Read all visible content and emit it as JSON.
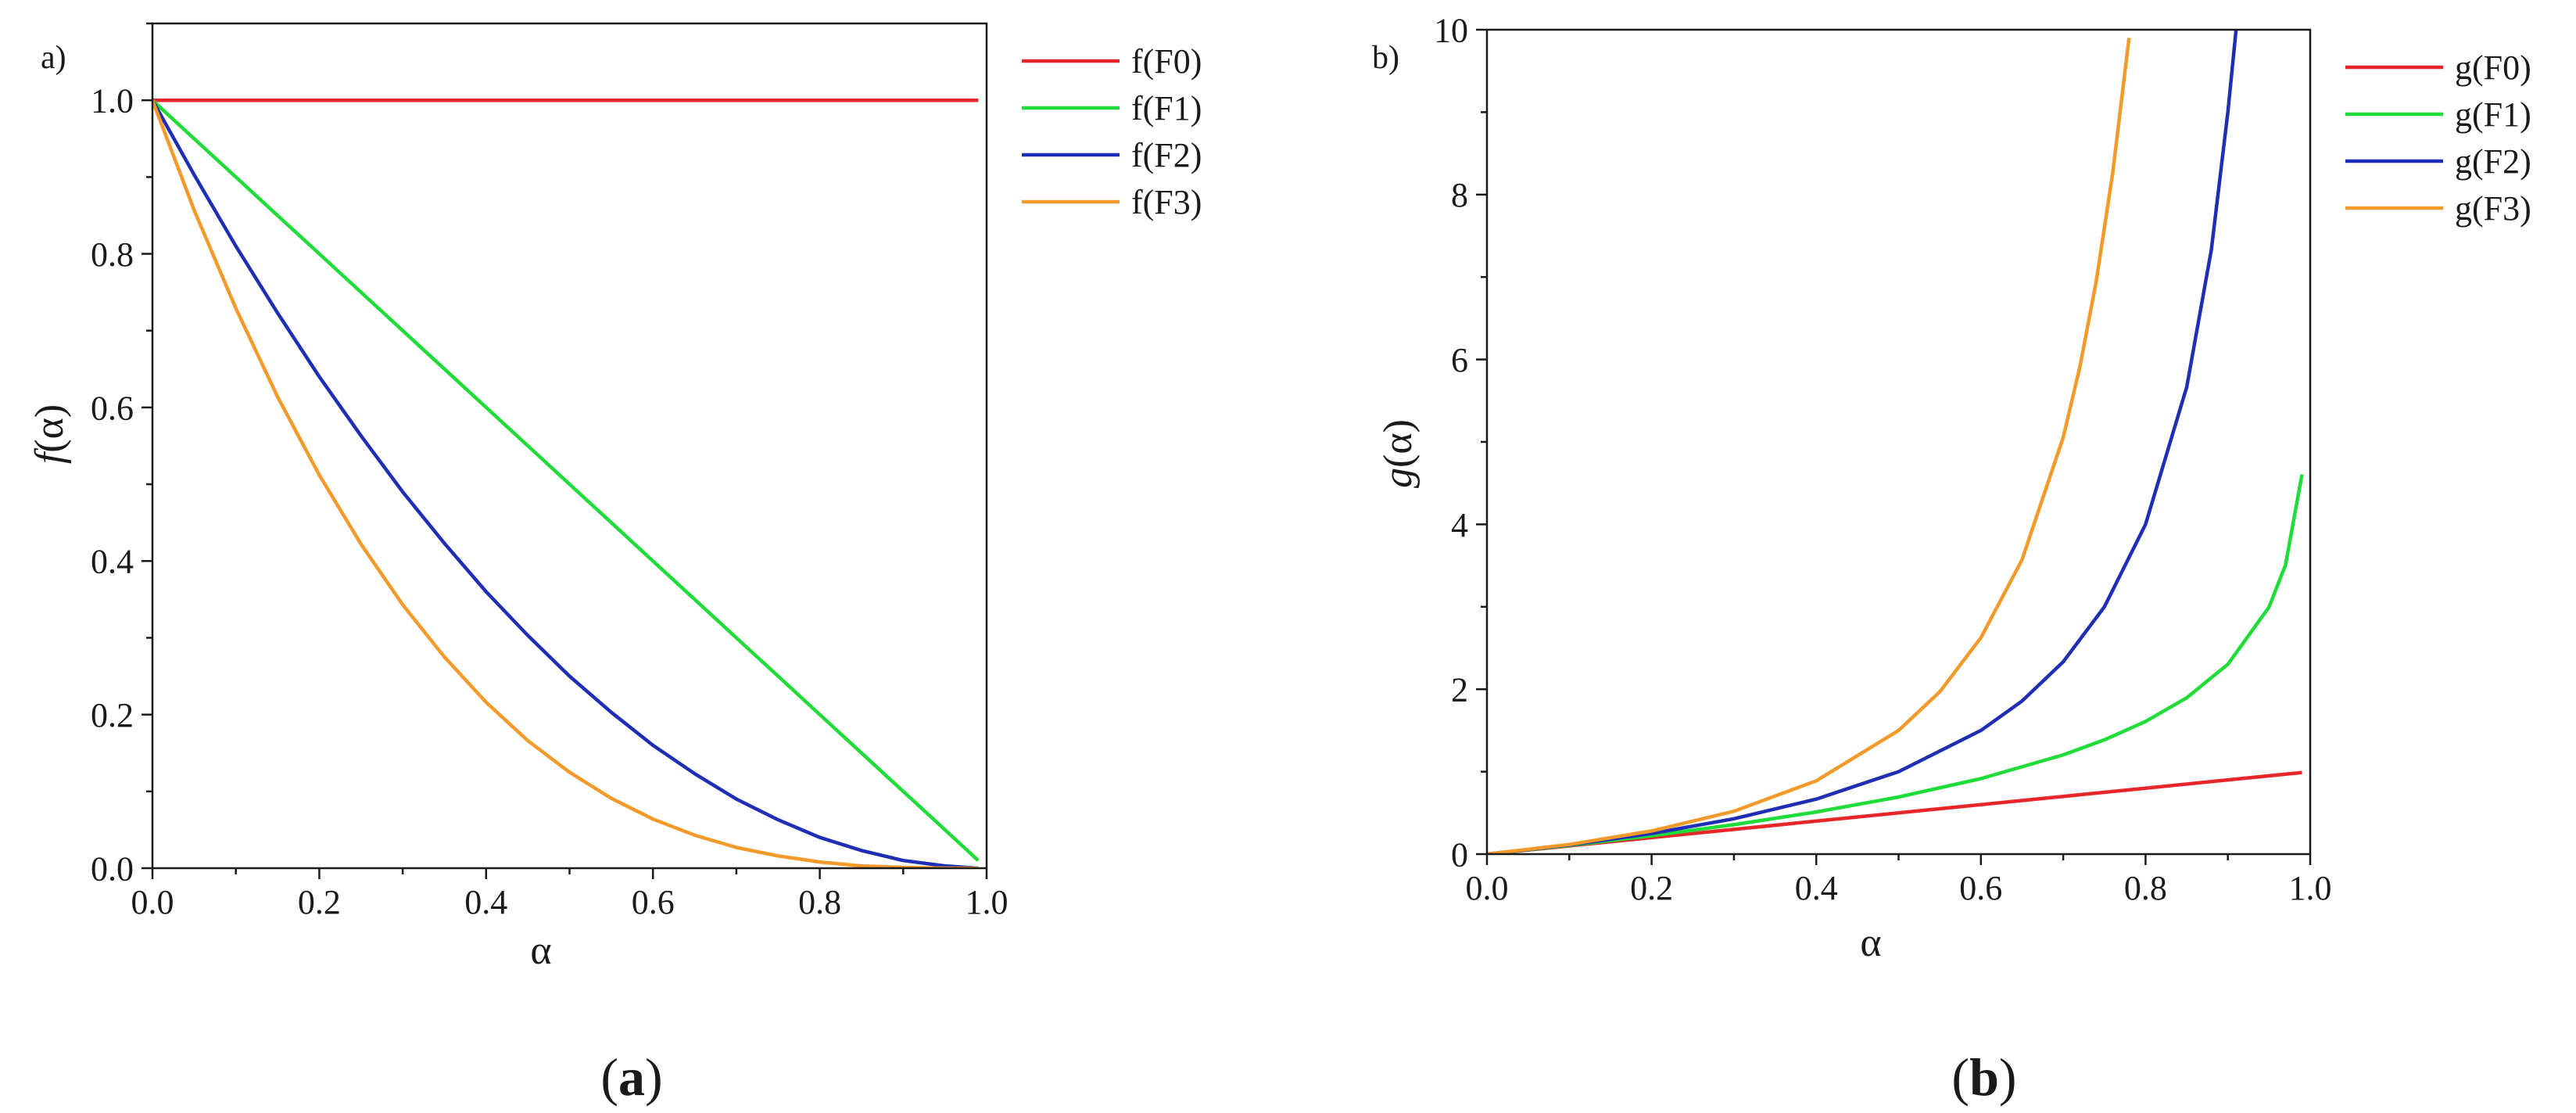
{
  "colors": {
    "F0": "#e8262a",
    "F1": "#1fdc38",
    "F2": "#1f2fb5",
    "F3": "#f39a2b",
    "axis": "#1a1a1a"
  },
  "panels": [
    {
      "corner_label": "a)",
      "caption_open": "(",
      "caption_letter": "a",
      "caption_close": ")"
    },
    {
      "corner_label": "b)",
      "caption_open": "(",
      "caption_letter": "b",
      "caption_close": ")"
    }
  ],
  "chart_data": [
    {
      "type": "line",
      "title": "",
      "xlabel": "α",
      "ylabel_italic": "f",
      "ylabel_rest": "(α)",
      "xlim": [
        0.0,
        1.0
      ],
      "ylim": [
        0.0,
        1.1
      ],
      "xticks": [
        "0.0",
        "0.2",
        "0.4",
        "0.6",
        "0.8",
        "1.0"
      ],
      "yticks": [
        "0.0",
        "0.2",
        "0.4",
        "0.6",
        "0.8",
        "1.0"
      ],
      "legend_position": "right-outside-top",
      "x": [
        0.0,
        0.05,
        0.1,
        0.15,
        0.2,
        0.25,
        0.3,
        0.35,
        0.4,
        0.45,
        0.5,
        0.55,
        0.6,
        0.65,
        0.7,
        0.75,
        0.8,
        0.85,
        0.9,
        0.95,
        0.99
      ],
      "series": [
        {
          "name": "f(F0)",
          "color_key": "F0",
          "values": [
            1.0,
            1.0,
            1.0,
            1.0,
            1.0,
            1.0,
            1.0,
            1.0,
            1.0,
            1.0,
            1.0,
            1.0,
            1.0,
            1.0,
            1.0,
            1.0,
            1.0,
            1.0,
            1.0,
            1.0,
            1.0
          ]
        },
        {
          "name": "f(F1)",
          "color_key": "F1",
          "values": [
            1.0,
            0.95,
            0.9,
            0.85,
            0.8,
            0.75,
            0.7,
            0.65,
            0.6,
            0.55,
            0.5,
            0.45,
            0.4,
            0.35,
            0.3,
            0.25,
            0.2,
            0.15,
            0.1,
            0.05,
            0.01
          ]
        },
        {
          "name": "f(F2)",
          "color_key": "F2",
          "values": [
            1.0,
            0.903,
            0.81,
            0.723,
            0.64,
            0.563,
            0.49,
            0.423,
            0.36,
            0.303,
            0.25,
            0.203,
            0.16,
            0.123,
            0.09,
            0.063,
            0.04,
            0.023,
            0.01,
            0.003,
            0.0
          ]
        },
        {
          "name": "f(F3)",
          "color_key": "F3",
          "values": [
            1.0,
            0.857,
            0.729,
            0.614,
            0.512,
            0.422,
            0.343,
            0.275,
            0.216,
            0.166,
            0.125,
            0.091,
            0.064,
            0.043,
            0.027,
            0.016,
            0.008,
            0.003,
            0.001,
            0.0,
            0.0
          ]
        }
      ]
    },
    {
      "type": "line",
      "title": "",
      "xlabel": "α",
      "ylabel_italic": "g",
      "ylabel_rest": "(α)",
      "xlim": [
        0.0,
        1.0
      ],
      "ylim": [
        0,
        10
      ],
      "xticks": [
        "0.0",
        "0.2",
        "0.4",
        "0.6",
        "0.8",
        "1.0"
      ],
      "yticks": [
        "0",
        "2",
        "4",
        "6",
        "8",
        "10"
      ],
      "legend_position": "right-outside-top",
      "series": [
        {
          "name": "g(F0)",
          "color_key": "F0",
          "x": [
            0.0,
            0.1,
            0.2,
            0.3,
            0.4,
            0.5,
            0.6,
            0.7,
            0.8,
            0.9,
            0.99
          ],
          "values": [
            0.0,
            0.1,
            0.2,
            0.3,
            0.4,
            0.5,
            0.6,
            0.7,
            0.8,
            0.9,
            0.99
          ]
        },
        {
          "name": "g(F1)",
          "color_key": "F1",
          "x": [
            0.0,
            0.1,
            0.2,
            0.3,
            0.4,
            0.5,
            0.6,
            0.7,
            0.75,
            0.8,
            0.85,
            0.9,
            0.95,
            0.97,
            0.99
          ],
          "values": [
            0.0,
            0.105,
            0.223,
            0.357,
            0.511,
            0.693,
            0.916,
            1.204,
            1.386,
            1.609,
            1.897,
            2.303,
            2.996,
            3.507,
            4.605
          ]
        },
        {
          "name": "g(F2)",
          "color_key": "F2",
          "x": [
            0.0,
            0.1,
            0.2,
            0.3,
            0.4,
            0.5,
            0.6,
            0.65,
            0.7,
            0.75,
            0.8,
            0.85,
            0.88,
            0.9,
            0.91
          ],
          "values": [
            0.0,
            0.111,
            0.25,
            0.429,
            0.667,
            1.0,
            1.5,
            1.857,
            2.333,
            3.0,
            4.0,
            5.667,
            7.333,
            9.0,
            10.0
          ]
        },
        {
          "name": "g(F3)",
          "color_key": "F3",
          "x": [
            0.0,
            0.1,
            0.2,
            0.3,
            0.4,
            0.5,
            0.55,
            0.6,
            0.65,
            0.7,
            0.72,
            0.74,
            0.76,
            0.78
          ],
          "values": [
            0.0,
            0.117,
            0.281,
            0.52,
            0.889,
            1.5,
            1.969,
            2.625,
            3.57,
            5.056,
            5.901,
            6.94,
            8.256,
            9.9
          ]
        }
      ]
    }
  ]
}
